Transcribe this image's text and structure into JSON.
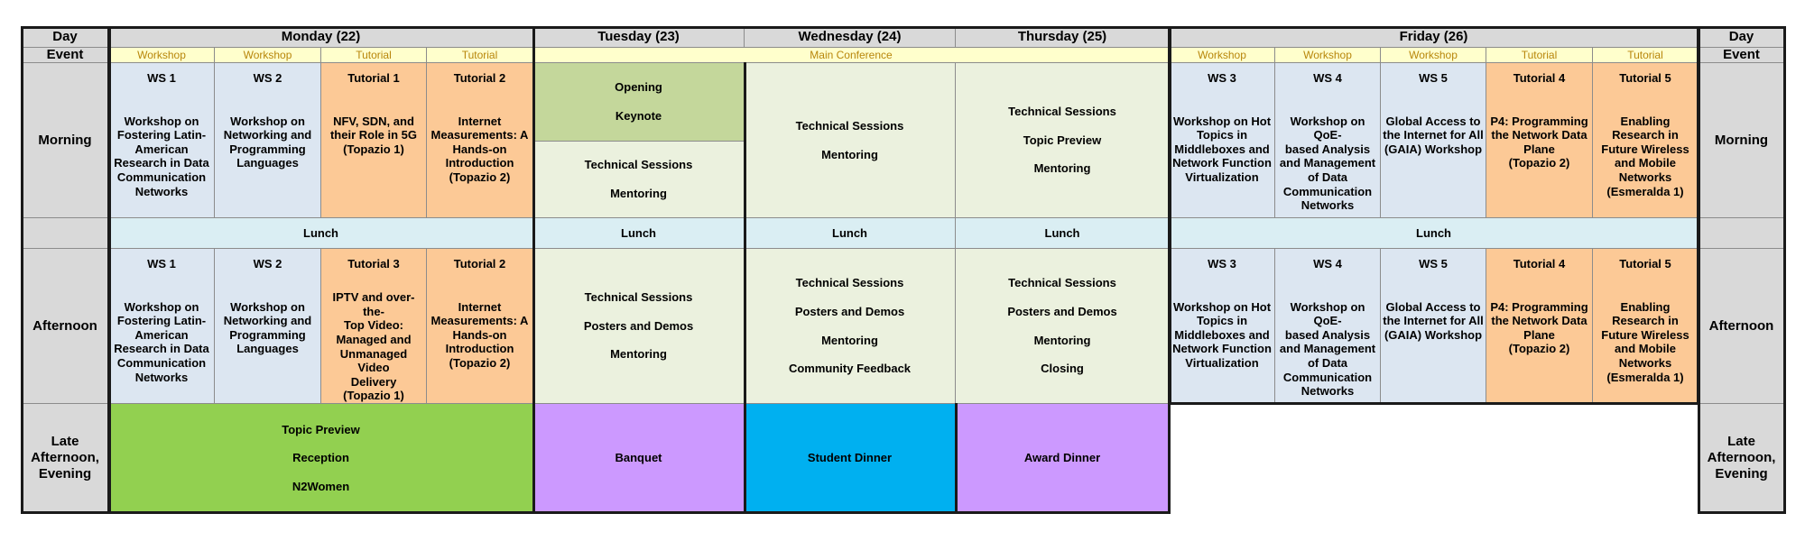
{
  "colors": {
    "header_gray": "#d9d9d9",
    "event_yellow": "#ffffcc",
    "workshop_blue": "#dce6f1",
    "tutorial_orange": "#fcc996",
    "opening_green": "#c4d79b",
    "conference_green": "#ebf1de",
    "lunch_blue": "#daeef3",
    "reception_green": "#92d050",
    "dinner_purple": "#cc99ff",
    "student_dinner_blue": "#00b0f0",
    "event_text_gold": "#b8860b"
  },
  "header": {
    "day_label": "Day",
    "event_label": "Event",
    "days": [
      "Monday (22)",
      "Tuesday (23)",
      "Wednesday (24)",
      "Thursday (25)",
      "Friday (26)"
    ]
  },
  "event_types": {
    "monday": [
      "Workshop",
      "Workshop",
      "Tutorial",
      "Tutorial"
    ],
    "main_conference": "Main Conference",
    "friday": [
      "Workshop",
      "Workshop",
      "Workshop",
      "Tutorial",
      "Tutorial"
    ]
  },
  "row_labels": {
    "morning": "Morning",
    "afternoon": "Afternoon",
    "late": [
      "Late",
      "Afternoon,",
      "Evening"
    ]
  },
  "monday_morning": [
    {
      "title": "WS 1",
      "lines": [
        "Workshop on",
        "Fostering Latin-",
        "American",
        "Research in Data",
        "Communication",
        "Networks"
      ]
    },
    {
      "title": "WS 2",
      "lines": [
        "Workshop on",
        "Networking and",
        "Programming",
        "Languages"
      ]
    },
    {
      "title": "Tutorial 1",
      "lines": [
        "NFV, SDN, and",
        "their Role in 5G",
        "",
        "(Topazio 1)"
      ]
    },
    {
      "title": "Tutorial 2",
      "lines": [
        "Internet",
        "Measurements: A",
        "Hands-on",
        "Introduction",
        "",
        "(Topazio 2)"
      ]
    }
  ],
  "monday_afternoon": [
    {
      "title": "WS 1",
      "lines": [
        "Workshop on",
        "Fostering Latin-",
        "American",
        "Research in Data",
        "Communication",
        "Networks"
      ]
    },
    {
      "title": "WS 2",
      "lines": [
        "Workshop on",
        "Networking and",
        "Programming",
        "Languages"
      ]
    },
    {
      "title": "Tutorial 3",
      "lines": [
        "IPTV and over-the-",
        "Top Video:",
        "Managed and",
        "Unmanaged Video",
        "Delivery",
        "",
        "(Topazio 1)"
      ]
    },
    {
      "title": "Tutorial 2",
      "lines": [
        "Internet",
        "Measurements: A",
        "Hands-on",
        "Introduction",
        "",
        "(Topazio 2)"
      ]
    }
  ],
  "friday_morning": [
    {
      "title": "WS 3",
      "lines": [
        "Workshop on Hot",
        "Topics in",
        "Middleboxes and",
        "Network Function",
        "Virtualization"
      ]
    },
    {
      "title": "WS 4",
      "lines": [
        "Workshop on QoE-",
        "based Analysis",
        "and Management",
        "of Data",
        "Communication",
        "Networks"
      ]
    },
    {
      "title": "WS 5",
      "lines": [
        "Global Access to",
        "the Internet for All",
        "(GAIA) Workshop"
      ]
    },
    {
      "title": "Tutorial 4",
      "lines": [
        "P4: Programming",
        "the Network Data",
        "Plane",
        "",
        "(Topazio 2)"
      ]
    },
    {
      "title": "Tutorial 5",
      "lines": [
        "Enabling",
        "Research in",
        "Future Wireless",
        "and Mobile",
        "Networks",
        "",
        "(Esmeralda 1)"
      ]
    }
  ],
  "friday_afternoon": [
    {
      "title": "WS 3",
      "lines": [
        "Workshop on Hot",
        "Topics in",
        "Middleboxes and",
        "Network Function",
        "Virtualization"
      ]
    },
    {
      "title": "WS 4",
      "lines": [
        "Workshop on QoE-",
        "based Analysis",
        "and Management",
        "of Data",
        "Communication",
        "Networks"
      ]
    },
    {
      "title": "WS 5",
      "lines": [
        "Global Access to",
        "the Internet for All",
        "(GAIA) Workshop"
      ]
    },
    {
      "title": "Tutorial 4",
      "lines": [
        "P4: Programming",
        "the Network Data",
        "Plane",
        "",
        "(Topazio 2)"
      ]
    },
    {
      "title": "Tutorial 5",
      "lines": [
        "Enabling",
        "Research in",
        "Future Wireless",
        "and Mobile",
        "Networks",
        "",
        "(Esmeralda 1)"
      ]
    }
  ],
  "tuesday": {
    "morning_top": [
      "Opening",
      "Keynote"
    ],
    "morning_bottom": [
      "Technical Sessions",
      "Mentoring"
    ],
    "afternoon": [
      "Technical Sessions",
      "Posters and Demos",
      "Mentoring"
    ],
    "evening": [
      "Banquet"
    ]
  },
  "wednesday": {
    "morning": [
      "Technical Sessions",
      "Mentoring"
    ],
    "afternoon": [
      "Technical Sessions",
      "Posters and Demos",
      "Mentoring",
      "Community Feedback"
    ],
    "evening": [
      "Student Dinner"
    ]
  },
  "thursday": {
    "morning": [
      "Technical Sessions",
      "Topic Preview",
      "Mentoring"
    ],
    "afternoon": [
      "Technical Sessions",
      "Posters and Demos",
      "Mentoring",
      "Closing"
    ],
    "evening": [
      "Award Dinner"
    ]
  },
  "monday_evening": [
    "Topic Preview",
    "Reception",
    "N2Women"
  ],
  "lunch": {
    "monday": "Lunch",
    "tuesday": "Lunch",
    "wednesday": "Lunch",
    "thursday": "Lunch",
    "friday": "Lunch"
  }
}
